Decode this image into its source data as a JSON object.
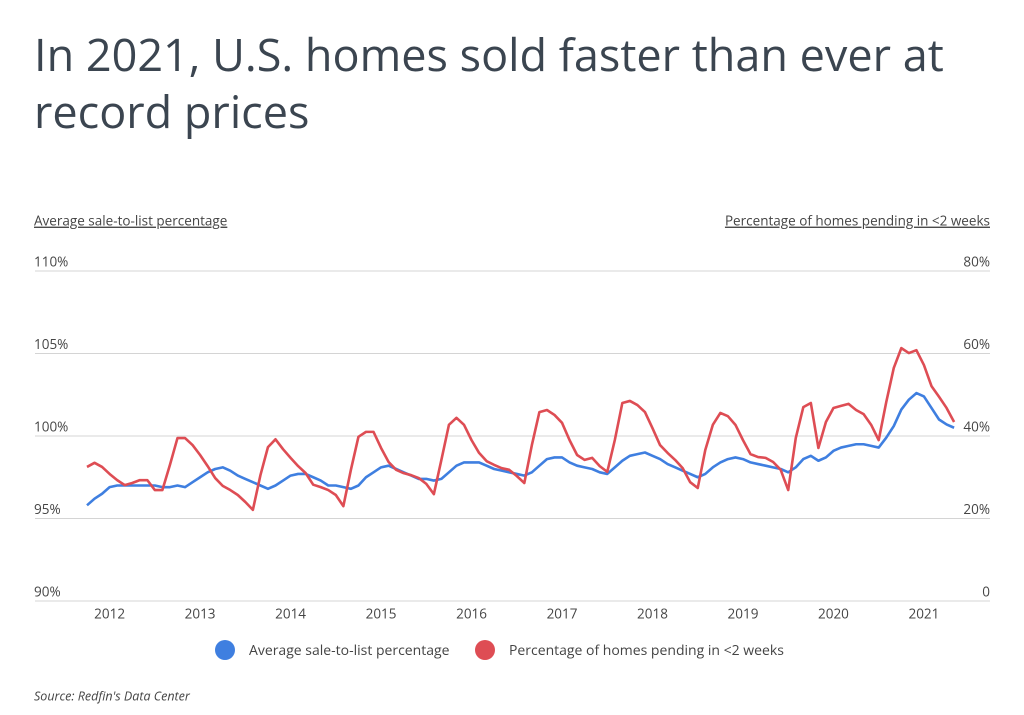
{
  "chart_data": {
    "type": "line",
    "title": "In 2021, U.S. homes sold faster than ever at record prices",
    "ylabel": "Average sale-to-list percentage",
    "y2label": "Percentage of homes pending in <2 weeks",
    "source": "Source:  Redfin's Data Center",
    "categories": [
      null,
      null,
      null,
      "2012",
      null,
      null,
      null,
      null,
      null,
      null,
      null,
      null,
      null,
      null,
      null,
      "2013",
      null,
      null,
      null,
      null,
      null,
      null,
      null,
      null,
      null,
      null,
      null,
      "2014",
      null,
      null,
      null,
      null,
      null,
      null,
      null,
      null,
      null,
      null,
      null,
      "2015",
      null,
      null,
      null,
      null,
      null,
      null,
      null,
      null,
      null,
      null,
      null,
      "2016",
      null,
      null,
      null,
      null,
      null,
      null,
      null,
      null,
      null,
      null,
      null,
      "2017",
      null,
      null,
      null,
      null,
      null,
      null,
      null,
      null,
      null,
      null,
      null,
      "2018",
      null,
      null,
      null,
      null,
      null,
      null,
      null,
      null,
      null,
      null,
      null,
      "2019",
      null,
      null,
      null,
      null,
      null,
      null,
      null,
      null,
      null,
      null,
      null,
      "2020",
      null,
      null,
      null,
      null,
      null,
      null,
      null,
      null,
      null,
      null,
      null,
      "2021",
      null,
      null,
      null,
      null
    ],
    "ylim": [
      90,
      110
    ],
    "yticks": [
      {
        "value": 90,
        "label": "90%"
      },
      {
        "value": 95,
        "label": "95%"
      },
      {
        "value": 100,
        "label": "100%"
      },
      {
        "value": 105,
        "label": "105%"
      },
      {
        "value": 110,
        "label": "110%"
      }
    ],
    "y2lim": [
      0,
      80
    ],
    "y2ticks": [
      0,
      {
        "value": 20,
        "label": "20%"
      },
      {
        "value": 40,
        "label": "40%"
      },
      {
        "value": 60,
        "label": "60%"
      },
      {
        "value": 80,
        "label": "80%"
      }
    ],
    "grid": true,
    "legend": "bottom",
    "series": [
      {
        "name": "Average sale-to-list percentage",
        "color": "#3f7fe0",
        "axis": "y",
        "values": [
          95.8,
          96.2,
          96.5,
          96.9,
          97.0,
          97.0,
          97.0,
          97.0,
          97.0,
          97.0,
          96.9,
          96.9,
          97.0,
          96.9,
          97.2,
          97.5,
          97.8,
          98.0,
          98.1,
          97.9,
          97.6,
          97.4,
          97.2,
          97.0,
          96.8,
          97.0,
          97.3,
          97.6,
          97.7,
          97.7,
          97.5,
          97.3,
          97.0,
          97.0,
          96.9,
          96.8,
          97.0,
          97.5,
          97.8,
          98.1,
          98.2,
          98.0,
          97.8,
          97.6,
          97.4,
          97.4,
          97.3,
          97.4,
          97.8,
          98.2,
          98.4,
          98.4,
          98.4,
          98.2,
          98.0,
          97.9,
          97.8,
          97.7,
          97.6,
          97.8,
          98.2,
          98.6,
          98.7,
          98.7,
          98.4,
          98.2,
          98.1,
          98.0,
          97.8,
          97.7,
          98.1,
          98.5,
          98.8,
          98.9,
          99.0,
          98.8,
          98.6,
          98.3,
          98.1,
          97.9,
          97.7,
          97.5,
          97.7,
          98.1,
          98.4,
          98.6,
          98.7,
          98.6,
          98.4,
          98.3,
          98.2,
          98.1,
          98.0,
          97.8,
          98.1,
          98.6,
          98.8,
          98.5,
          98.7,
          99.1,
          99.3,
          99.4,
          99.5,
          99.5,
          99.4,
          99.3,
          99.9,
          100.6,
          101.6,
          102.2,
          102.6,
          102.4,
          101.7,
          101.0,
          100.7,
          100.5
        ]
      },
      {
        "name": "Percentage of homes pending in <2 weeks",
        "color": "#de4d54",
        "axis": "y2",
        "values": [
          32.5,
          33.5,
          32.5,
          30.8,
          29.3,
          28.1,
          28.6,
          29.3,
          29.3,
          26.9,
          26.9,
          33.0,
          39.5,
          39.5,
          37.8,
          35.4,
          32.7,
          29.8,
          27.9,
          26.9,
          25.7,
          24.0,
          22.1,
          30.5,
          37.3,
          39.2,
          36.8,
          34.7,
          32.7,
          31.0,
          28.2,
          27.6,
          26.9,
          25.7,
          23.0,
          31.8,
          39.8,
          41.0,
          41.0,
          37.1,
          33.7,
          31.8,
          31.0,
          30.5,
          29.8,
          28.4,
          25.9,
          34.2,
          42.7,
          44.4,
          42.7,
          39.0,
          35.9,
          33.9,
          33.0,
          32.2,
          31.8,
          30.3,
          28.6,
          37.8,
          45.8,
          46.3,
          45.1,
          43.2,
          39.0,
          35.4,
          34.2,
          34.7,
          32.7,
          31.3,
          39.0,
          48.0,
          48.5,
          47.5,
          45.8,
          41.9,
          37.8,
          35.9,
          34.2,
          32.2,
          28.8,
          27.4,
          36.6,
          42.7,
          45.6,
          44.8,
          42.7,
          39.0,
          35.6,
          34.9,
          34.7,
          33.7,
          31.8,
          26.9,
          39.5,
          47.0,
          48.0,
          37.1,
          43.4,
          46.8,
          47.3,
          47.8,
          46.3,
          45.3,
          42.7,
          39.0,
          48.2,
          56.5,
          61.3,
          60.1,
          60.8,
          57.2,
          52.1,
          49.5,
          46.8,
          43.4
        ]
      }
    ]
  }
}
